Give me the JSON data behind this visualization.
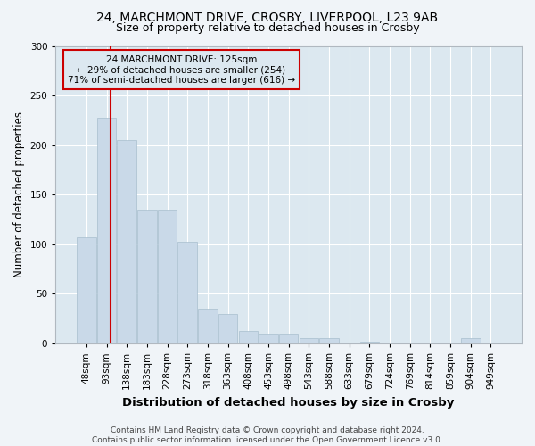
{
  "title_line1": "24, MARCHMONT DRIVE, CROSBY, LIVERPOOL, L23 9AB",
  "title_line2": "Size of property relative to detached houses in Crosby",
  "xlabel": "Distribution of detached houses by size in Crosby",
  "ylabel": "Number of detached properties",
  "bar_labels": [
    "48sqm",
    "93sqm",
    "138sqm",
    "183sqm",
    "228sqm",
    "273sqm",
    "318sqm",
    "363sqm",
    "408sqm",
    "453sqm",
    "498sqm",
    "543sqm",
    "588sqm",
    "633sqm",
    "679sqm",
    "724sqm",
    "769sqm",
    "814sqm",
    "859sqm",
    "904sqm",
    "949sqm"
  ],
  "bar_values": [
    107,
    228,
    205,
    135,
    135,
    103,
    35,
    30,
    13,
    10,
    10,
    5,
    5,
    0,
    2,
    0,
    0,
    0,
    0,
    5,
    0
  ],
  "bar_color": "#c9d9e8",
  "bar_edge_color": "#a8bece",
  "background_color": "#dce8f0",
  "plot_bg_color": "#dce8f0",
  "grid_color": "#ffffff",
  "vline_color": "#cc0000",
  "annotation_text": "24 MARCHMONT DRIVE: 125sqm\n← 29% of detached houses are smaller (254)\n71% of semi-detached houses are larger (616) →",
  "annotation_box_edge": "#cc0000",
  "ylim": [
    0,
    300
  ],
  "yticks": [
    0,
    50,
    100,
    150,
    200,
    250,
    300
  ],
  "footer_text": "Contains HM Land Registry data © Crown copyright and database right 2024.\nContains public sector information licensed under the Open Government Licence v3.0.",
  "title_fontsize": 10,
  "subtitle_fontsize": 9,
  "xlabel_fontsize": 9.5,
  "ylabel_fontsize": 8.5,
  "tick_fontsize": 7.5,
  "annot_fontsize": 7.5,
  "footer_fontsize": 6.5
}
